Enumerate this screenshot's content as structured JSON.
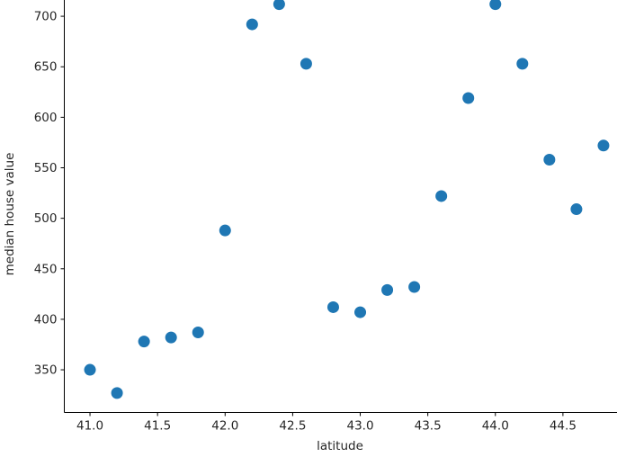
{
  "chart_data": {
    "type": "scatter",
    "title": "",
    "xlabel": "latitude",
    "ylabel": "median house value",
    "x": [
      41.0,
      41.2,
      41.4,
      41.6,
      41.8,
      42.0,
      42.2,
      42.4,
      42.6,
      42.8,
      43.0,
      43.2,
      43.4,
      43.6,
      43.8,
      44.0,
      44.2,
      44.4,
      44.6,
      44.8
    ],
    "y": [
      350,
      327,
      378,
      382,
      387,
      488,
      692,
      712,
      653,
      412,
      407,
      429,
      432,
      522,
      619,
      712,
      653,
      558,
      509,
      572
    ],
    "xlim": [
      40.81,
      44.99
    ],
    "ylim": [
      307.75,
      731.25
    ],
    "x_ticks": [
      41.0,
      41.5,
      42.0,
      42.5,
      43.0,
      43.5,
      44.0,
      44.5
    ],
    "x_tick_labels": [
      "41.0",
      "41.5",
      "42.0",
      "42.5",
      "43.0",
      "43.5",
      "44.0",
      "44.5"
    ],
    "y_ticks": [
      350,
      400,
      450,
      500,
      550,
      600,
      650,
      700
    ],
    "y_tick_labels": [
      "350",
      "400",
      "450",
      "500",
      "550",
      "600",
      "650",
      "700"
    ],
    "marker_color": "#1f77b4",
    "axis_color": "#000000",
    "grid": false,
    "legend": null
  }
}
